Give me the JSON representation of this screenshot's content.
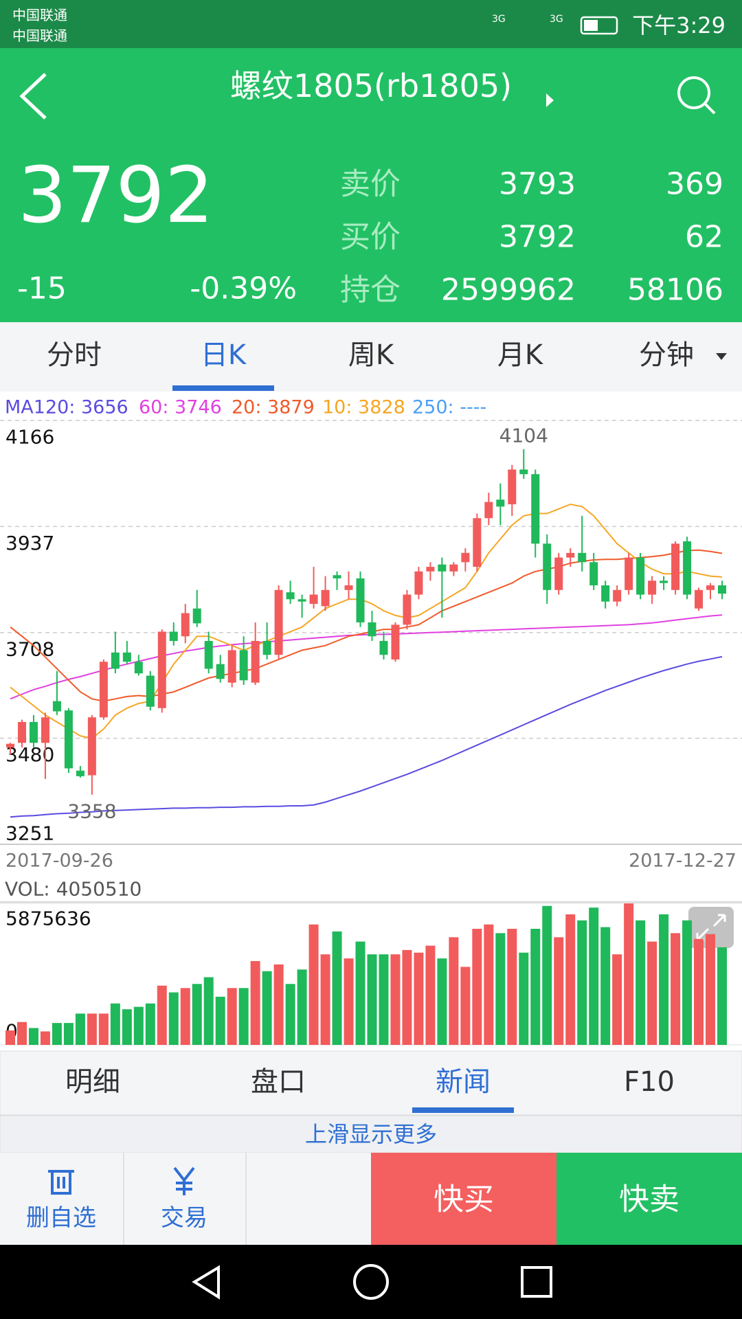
{
  "status_bar": {
    "carriers": [
      "中国联通",
      "中国联通"
    ],
    "network_labels": [
      "3G",
      "3G"
    ],
    "time": "下午3:29"
  },
  "header": {
    "title": "螺纹1805(rb1805)"
  },
  "quote": {
    "price": 3792,
    "change": -15,
    "change_pct": "-0.39%",
    "rows": [
      {
        "label": "卖价",
        "price": 3793,
        "volume": 369
      },
      {
        "label": "买价",
        "price": 3792,
        "volume": 62
      },
      {
        "label": "持仓",
        "price": 2599962,
        "volume": 58106
      }
    ]
  },
  "period_tabs": [
    "分时",
    "日K",
    "周K",
    "月K",
    "分钟"
  ],
  "active_period_tab": 1,
  "chart_data": [
    {
      "type": "candlestick",
      "up_color": "#f25b5b",
      "down_color": "#1fb85a",
      "legend": [
        {
          "text": "MA120: 3656",
          "color": "#5a4be0"
        },
        {
          "text": "60: 3746",
          "color": "#e040e0"
        },
        {
          "text": "20: 3879",
          "color": "#f05a28"
        },
        {
          "text": "10: 3828",
          "color": "#f5a623"
        },
        {
          "text": "250: ----",
          "color": "#4a9ff5"
        }
      ],
      "x_labels": [
        "2017-09-26",
        "2017-12-27"
      ],
      "ylim": [
        3251,
        4166
      ],
      "yticks": [
        4166,
        3937,
        3708,
        3480,
        3251
      ],
      "high_label": 4104,
      "low_label": 3358,
      "ohlc": [
        [
          3460,
          3470,
          3445,
          3468
        ],
        [
          3470,
          3520,
          3460,
          3515
        ],
        [
          3515,
          3530,
          3460,
          3470
        ],
        [
          3470,
          3535,
          3392,
          3525
        ],
        [
          3560,
          3625,
          3530,
          3538
        ],
        [
          3540,
          3545,
          3405,
          3415
        ],
        [
          3410,
          3420,
          3395,
          3398
        ],
        [
          3400,
          3530,
          3358,
          3525
        ],
        [
          3525,
          3650,
          3520,
          3645
        ],
        [
          3665,
          3710,
          3620,
          3630
        ],
        [
          3665,
          3690,
          3640,
          3645
        ],
        [
          3645,
          3660,
          3615,
          3620
        ],
        [
          3615,
          3625,
          3540,
          3548
        ],
        [
          3545,
          3715,
          3535,
          3710
        ],
        [
          3710,
          3730,
          3680,
          3690
        ],
        [
          3700,
          3770,
          3685,
          3750
        ],
        [
          3760,
          3800,
          3720,
          3728
        ],
        [
          3690,
          3710,
          3620,
          3630
        ],
        [
          3640,
          3660,
          3600,
          3608
        ],
        [
          3600,
          3680,
          3590,
          3670
        ],
        [
          3670,
          3700,
          3595,
          3605
        ],
        [
          3600,
          3730,
          3595,
          3690
        ],
        [
          3690,
          3730,
          3650,
          3660
        ],
        [
          3660,
          3810,
          3650,
          3800
        ],
        [
          3795,
          3820,
          3770,
          3780
        ],
        [
          3780,
          3790,
          3740,
          3775
        ],
        [
          3770,
          3850,
          3760,
          3790
        ],
        [
          3765,
          3830,
          3755,
          3800
        ],
        [
          3832,
          3840,
          3800,
          3825
        ],
        [
          3800,
          3840,
          3780,
          3810
        ],
        [
          3825,
          3840,
          3720,
          3730
        ],
        [
          3730,
          3755,
          3690,
          3700
        ],
        [
          3690,
          3710,
          3650,
          3660
        ],
        [
          3650,
          3730,
          3645,
          3725
        ],
        [
          3725,
          3800,
          3715,
          3790
        ],
        [
          3790,
          3850,
          3780,
          3840
        ],
        [
          3840,
          3860,
          3820,
          3850
        ],
        [
          3855,
          3870,
          3740,
          3840
        ],
        [
          3840,
          3860,
          3830,
          3855
        ],
        [
          3860,
          3890,
          3840,
          3880
        ],
        [
          3850,
          3965,
          3840,
          3955
        ],
        [
          3955,
          4010,
          3940,
          3990
        ],
        [
          3995,
          4030,
          3940,
          3980
        ],
        [
          3985,
          4070,
          3960,
          4060
        ],
        [
          4060,
          4104,
          4040,
          4050
        ],
        [
          4050,
          4060,
          3870,
          3900
        ],
        [
          3900,
          3920,
          3770,
          3800
        ],
        [
          3800,
          3880,
          3790,
          3870
        ],
        [
          3870,
          3890,
          3850,
          3880
        ],
        [
          3880,
          3960,
          3840,
          3860
        ],
        [
          3860,
          3880,
          3800,
          3810
        ],
        [
          3810,
          3820,
          3760,
          3775
        ],
        [
          3775,
          3810,
          3765,
          3800
        ],
        [
          3800,
          3880,
          3790,
          3870
        ],
        [
          3870,
          3880,
          3780,
          3790
        ],
        [
          3790,
          3830,
          3770,
          3820
        ],
        [
          3820,
          3830,
          3800,
          3815
        ],
        [
          3800,
          3905,
          3790,
          3900
        ],
        [
          3905,
          3915,
          3780,
          3790
        ],
        [
          3760,
          3805,
          3755,
          3800
        ],
        [
          3800,
          3815,
          3780,
          3810
        ],
        [
          3810,
          3820,
          3780,
          3792
        ]
      ],
      "series": [
        {
          "color": "#5a4be0",
          "values": [
            3310,
            3312,
            3313,
            3315,
            3317,
            3318,
            3320,
            3321,
            3323,
            3324,
            3325,
            3326,
            3327,
            3328,
            3329,
            3329,
            3330,
            3330,
            3331,
            3331,
            3332,
            3332,
            3333,
            3333,
            3334,
            3334,
            3336,
            3342,
            3350,
            3358,
            3366,
            3375,
            3384,
            3393,
            3402,
            3412,
            3422,
            3432,
            3443,
            3454,
            3465,
            3476,
            3487,
            3498,
            3509,
            3520,
            3531,
            3542,
            3553,
            3563,
            3573,
            3583,
            3592,
            3601,
            3610,
            3618,
            3626,
            3633,
            3640,
            3646,
            3651,
            3656
          ]
        },
        {
          "color": "#e040e0",
          "values": [
            3565,
            3575,
            3585,
            3592,
            3600,
            3607,
            3613,
            3620,
            3627,
            3634,
            3640,
            3646,
            3652,
            3658,
            3663,
            3668,
            3672,
            3676,
            3679,
            3682,
            3684,
            3686,
            3688,
            3690,
            3692,
            3694,
            3696,
            3698,
            3700,
            3702,
            3703,
            3704,
            3704,
            3705,
            3706,
            3707,
            3708,
            3709,
            3710,
            3711,
            3712,
            3713,
            3714,
            3715,
            3716,
            3717,
            3718,
            3719,
            3720,
            3721,
            3722,
            3723,
            3724,
            3725,
            3727,
            3729,
            3732,
            3735,
            3738,
            3741,
            3744,
            3746
          ]
        },
        {
          "color": "#f05a28",
          "values": [
            3720,
            3700,
            3680,
            3655,
            3630,
            3605,
            3580,
            3565,
            3560,
            3565,
            3570,
            3572,
            3570,
            3575,
            3580,
            3590,
            3600,
            3610,
            3615,
            3620,
            3625,
            3630,
            3640,
            3650,
            3660,
            3670,
            3675,
            3680,
            3690,
            3700,
            3705,
            3710,
            3715,
            3715,
            3720,
            3725,
            3740,
            3755,
            3765,
            3775,
            3785,
            3795,
            3805,
            3815,
            3830,
            3840,
            3845,
            3850,
            3858,
            3862,
            3865,
            3866,
            3866,
            3868,
            3870,
            3872,
            3875,
            3880,
            3885,
            3886,
            3883,
            3879
          ]
        },
        {
          "color": "#f5a623",
          "values": [
            3590,
            3570,
            3550,
            3530,
            3515,
            3500,
            3485,
            3480,
            3500,
            3530,
            3545,
            3555,
            3560,
            3600,
            3640,
            3670,
            3700,
            3700,
            3690,
            3680,
            3670,
            3680,
            3690,
            3700,
            3710,
            3720,
            3740,
            3760,
            3770,
            3780,
            3780,
            3770,
            3755,
            3745,
            3740,
            3745,
            3760,
            3775,
            3790,
            3805,
            3840,
            3880,
            3910,
            3940,
            3960,
            3965,
            3965,
            3975,
            3985,
            3980,
            3960,
            3930,
            3900,
            3880,
            3860,
            3845,
            3835,
            3835,
            3840,
            3835,
            3830,
            3828
          ]
        }
      ]
    },
    {
      "type": "bar",
      "title": "VOL: 4050510",
      "ylim": [
        0,
        5875636
      ],
      "yticks": [
        5875636,
        0
      ],
      "values": [
        600000,
        950000,
        700000,
        560000,
        910000,
        910000,
        1300000,
        1300000,
        1300000,
        1720000,
        1480000,
        1580000,
        1720000,
        2460000,
        2180000,
        2360000,
        2530000,
        2810000,
        2000000,
        2360000,
        2360000,
        3480000,
        3060000,
        3340000,
        2530000,
        3130000,
        5000000,
        3760000,
        4710000,
        3590000,
        4290000,
        3760000,
        3760000,
        3760000,
        3940000,
        3830000,
        4120000,
        3590000,
        4470000,
        3240000,
        4820000,
        5000000,
        4640000,
        4820000,
        3830000,
        4820000,
        5770000,
        4470000,
        5420000,
        5170000,
        5700000,
        4890000,
        3760000,
        5875636,
        5170000,
        4290000,
        5420000,
        4640000,
        5170000,
        4400000,
        4600000,
        4050510
      ]
    }
  ],
  "info_tabs": [
    "明细",
    "盘口",
    "新闻",
    "F10"
  ],
  "active_info_tab": 2,
  "swipe_hint": "上滑显示更多",
  "actions": [
    "删自选",
    "交易"
  ],
  "buy": "快买",
  "sell": "快卖"
}
